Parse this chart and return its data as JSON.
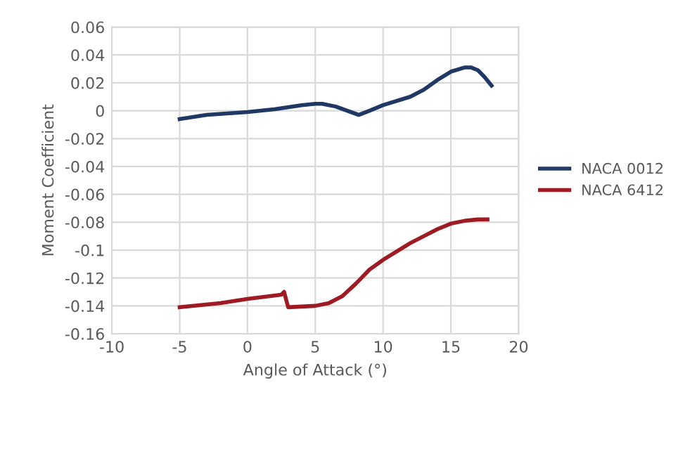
{
  "chart_data": {
    "type": "line",
    "xlabel": "Angle of Attack (°)",
    "ylabel": "Moment Coefficient",
    "xlim": [
      -10,
      20
    ],
    "xticks": [
      -10,
      -5,
      0,
      5,
      10,
      15,
      20
    ],
    "ylim": [
      -0.16,
      0.06
    ],
    "yticks": [
      -0.16,
      -0.14,
      -0.12,
      -0.1,
      -0.08,
      -0.06,
      -0.04,
      -0.02,
      0,
      0.02,
      0.04,
      0.06
    ],
    "grid": true,
    "legend": "right",
    "marker": "none",
    "line_style": "solid",
    "series": [
      {
        "name": "NACA 0012",
        "color": "#1f3864",
        "x": [
          -5,
          -3,
          0,
          2,
          4,
          5,
          5.5,
          6.5,
          8.2,
          9,
          10,
          12,
          13,
          14,
          15,
          16,
          16.5,
          17,
          17.5,
          18
        ],
        "values": [
          -0.006,
          -0.003,
          -0.001,
          0.001,
          0.004,
          0.005,
          0.005,
          0.003,
          -0.003,
          0,
          0.004,
          0.01,
          0.015,
          0.022,
          0.028,
          0.031,
          0.031,
          0.029,
          0.024,
          0.018
        ]
      },
      {
        "name": "NACA 6412",
        "color": "#9e1b24",
        "x": [
          -5,
          -2,
          0,
          2.5,
          2.7,
          3,
          5,
          6,
          7,
          8,
          9,
          10,
          12,
          14,
          15,
          16,
          17,
          17.7
        ],
        "values": [
          -0.141,
          -0.138,
          -0.135,
          -0.132,
          -0.13,
          -0.141,
          -0.14,
          -0.138,
          -0.133,
          -0.124,
          -0.114,
          -0.107,
          -0.095,
          -0.085,
          -0.081,
          -0.079,
          -0.078,
          -0.078
        ]
      }
    ]
  }
}
